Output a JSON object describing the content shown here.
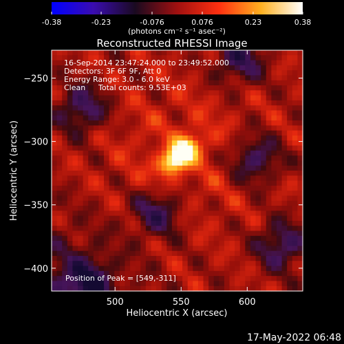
{
  "colorbar": {
    "ticks": [
      "-0.38",
      "-0.23",
      "-0.076",
      "0.076",
      "0.23",
      "0.38"
    ],
    "tick_values": [
      -0.38,
      -0.23,
      -0.076,
      0.076,
      0.23,
      0.38
    ],
    "range": [
      -0.38,
      0.38
    ],
    "units_label": "(photons cm⁻² s⁻¹ asec⁻²)",
    "colormap": [
      "#0000ff",
      "#3a0cb0",
      "#1a0a20",
      "#a01010",
      "#ff3010",
      "#ffb020",
      "#ffffff"
    ]
  },
  "title": "Reconstructed RHESSI Image",
  "annotations": {
    "time": "16-Sep-2014 23:47:24.000 to 23:49:52.000",
    "detectors": "Detectors: 3F 6F 9F, Att 0",
    "energy": "Energy Range: 3.0 - 6.0 keV",
    "clean_label": "Clean",
    "counts": "Total counts: 9.53E+03",
    "peak": "Position of Peak = [549,-311]"
  },
  "footer_date": "17-May-2022 06:48",
  "chart_data": {
    "type": "heatmap",
    "title": "Reconstructed RHESSI Image",
    "xlabel": "Heliocentric X (arcsec)",
    "ylabel": "Heliocentric Y (arcsec)",
    "xlim": [
      452,
      642
    ],
    "ylim": [
      -418,
      -228
    ],
    "x_ticks": [
      500,
      550,
      600
    ],
    "y_ticks": [
      -400,
      -350,
      -300,
      -250
    ],
    "x_tick_labels": [
      "500",
      "550",
      "600"
    ],
    "y_tick_labels": [
      "−400",
      "−350",
      "−300",
      "−250"
    ],
    "peak": {
      "x": 549,
      "y": -311
    },
    "cold_spots": [
      {
        "x": 475,
        "y": -274
      },
      {
        "x": 532,
        "y": -356
      },
      {
        "x": 606,
        "y": -314
      },
      {
        "x": 626,
        "y": -382
      },
      {
        "x": 594,
        "y": -236
      },
      {
        "x": 478,
        "y": -412
      }
    ]
  }
}
